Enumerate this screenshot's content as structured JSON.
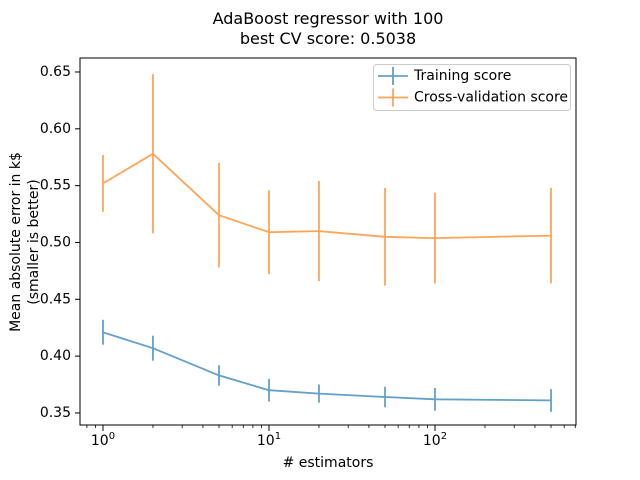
{
  "title": {
    "line1": "AdaBoost regressor with 100",
    "line2": "best CV score: 0.5038"
  },
  "axes": {
    "xlabel": "# estimators",
    "ylabel_line1": "Mean absolute error in k$",
    "ylabel_line2": "(smaller is better)"
  },
  "chart_data": {
    "type": "line",
    "title": "AdaBoost regressor with 100\nbest CV score: 0.5038",
    "xlabel": "# estimators",
    "ylabel": "Mean absolute error in k$\n(smaller is better)",
    "x_scale": "log",
    "grid": false,
    "x": [
      1,
      2,
      5,
      10,
      20,
      50,
      100,
      500
    ],
    "series": [
      {
        "name": "Training score",
        "color": "#62a0ca",
        "values": [
          0.421,
          0.407,
          0.383,
          0.37,
          0.367,
          0.364,
          0.362,
          0.361
        ],
        "yerr": [
          0.011,
          0.011,
          0.009,
          0.01,
          0.008,
          0.009,
          0.01,
          0.01
        ]
      },
      {
        "name": "Cross-validation score",
        "color": "#ffa556",
        "values": [
          0.552,
          0.578,
          0.524,
          0.509,
          0.51,
          0.505,
          0.5038,
          0.506
        ],
        "yerr": [
          0.025,
          0.07,
          0.046,
          0.037,
          0.044,
          0.043,
          0.04,
          0.042
        ]
      }
    ],
    "xticks": [
      1,
      10,
      100
    ],
    "yticks": [
      0.35,
      0.4,
      0.45,
      0.5,
      0.55,
      0.6,
      0.65
    ],
    "xlim": [
      0.727,
      707
    ],
    "ylim": [
      0.3394,
      0.6623
    ],
    "legend": {
      "position": "upper right",
      "entries": [
        "Training score",
        "Cross-validation score"
      ]
    },
    "spine_color": "#000000"
  }
}
